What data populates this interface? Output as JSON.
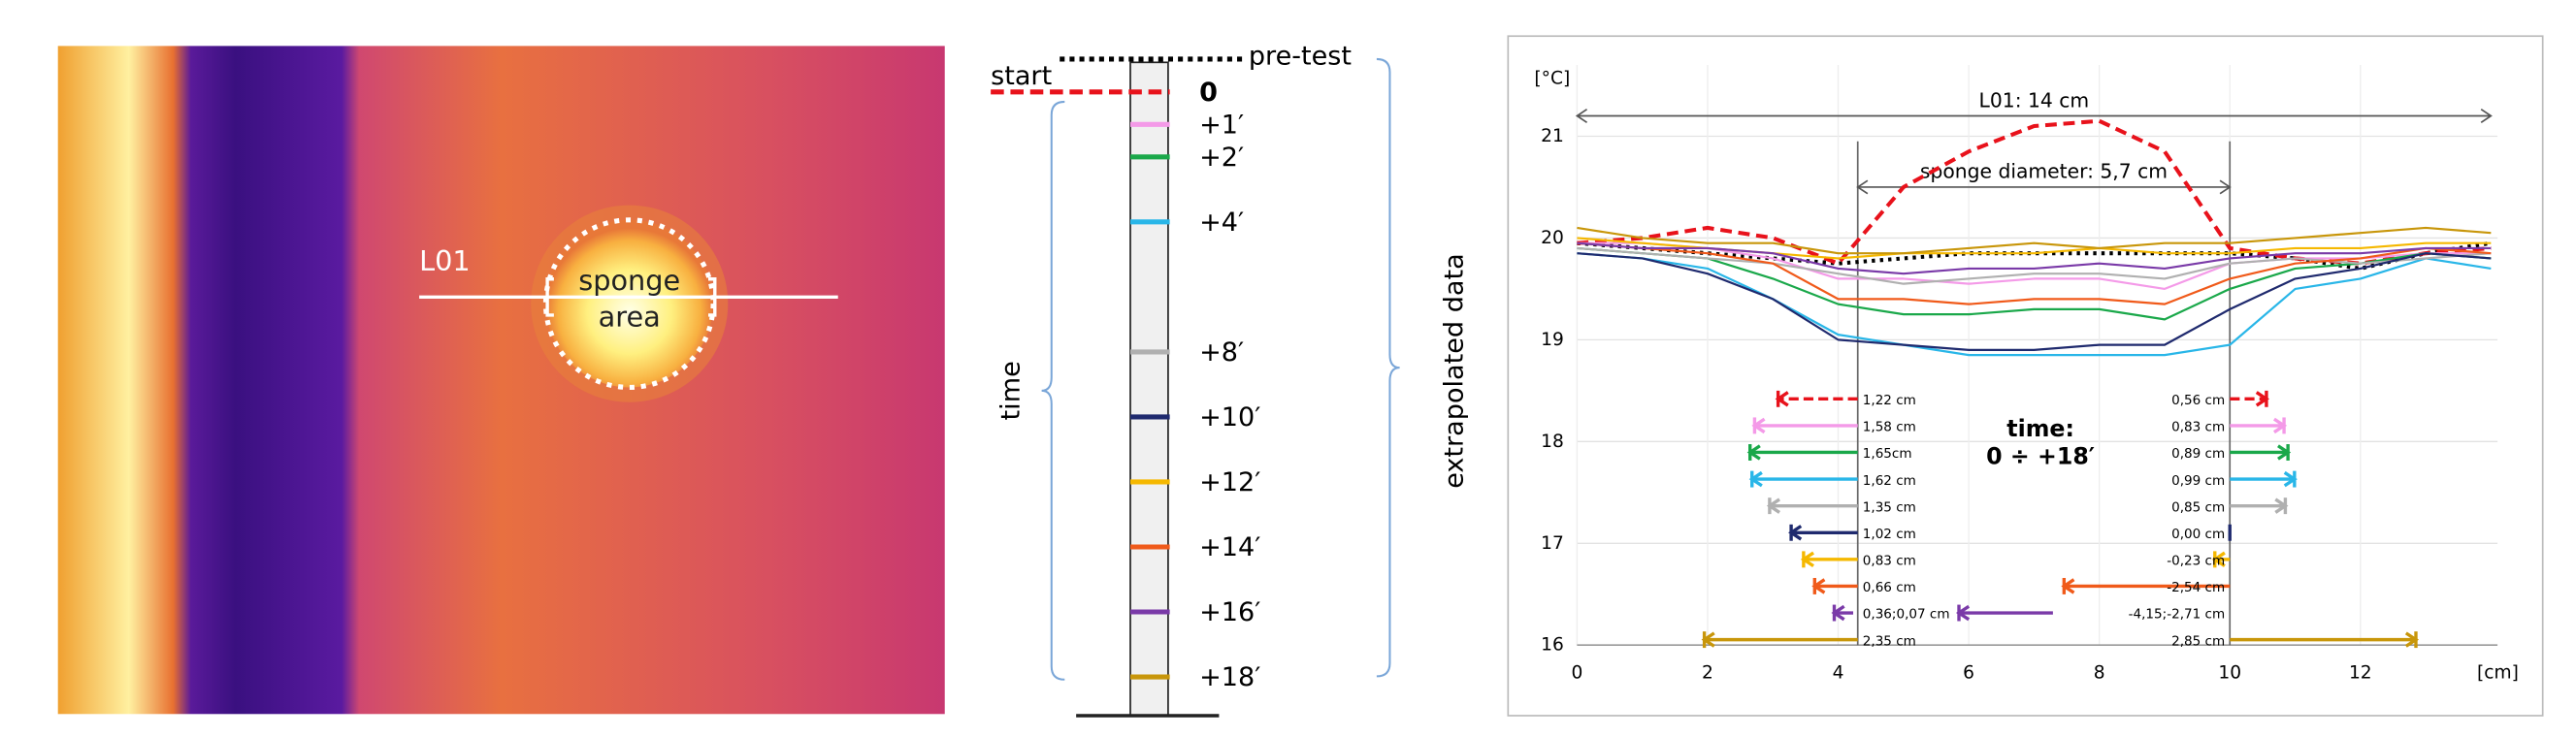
{
  "thermal_image": {
    "line_label": "L01",
    "area_label": [
      "sponge",
      "area"
    ]
  },
  "timeline": {
    "start_label": "start",
    "axis_label": "time",
    "brace_label": "extrapolated data",
    "minutes": [
      null,
      0,
      1,
      2,
      4,
      8,
      10,
      12,
      14,
      16,
      18
    ]
  },
  "chart_data": {
    "type": "line",
    "y_unit": "[°C]",
    "x_unit": "[cm]",
    "xlim": [
      0,
      14.1
    ],
    "ylim": [
      16,
      21.7
    ],
    "xticks": [
      0,
      2,
      4,
      6,
      8,
      10,
      12
    ],
    "yticks": [
      16,
      17,
      18,
      19,
      20,
      21
    ],
    "grid": true,
    "x": [
      0,
      1,
      2,
      3,
      4,
      5,
      6,
      7,
      8,
      9,
      10,
      11,
      12,
      13,
      14
    ],
    "length_annotation": {
      "label": "L01: 14 cm",
      "from": 0,
      "to": 14,
      "y": 21.2
    },
    "sponge_edges": [
      4.3,
      10
    ],
    "sponge_annotation": {
      "label": "sponge diameter: 5,7 cm",
      "y": 20.5
    },
    "time_annotation": [
      "time:",
      "0 ÷ +18′"
    ],
    "series": [
      {
        "name": "pre-test",
        "color": "#000000",
        "dash": "dotted",
        "values": [
          19.95,
          19.9,
          19.85,
          19.8,
          19.75,
          19.8,
          19.85,
          19.85,
          19.85,
          19.85,
          19.85,
          19.8,
          19.7,
          19.85,
          19.95
        ]
      },
      {
        "name": "0",
        "color": "#e8121b",
        "dash": "dashed",
        "values": [
          19.95,
          20.0,
          20.1,
          20.0,
          19.75,
          20.5,
          20.85,
          21.1,
          21.15,
          20.85,
          19.9,
          19.8,
          19.75,
          19.85,
          19.9
        ],
        "left": 1.22,
        "left_label": "1,22 cm",
        "right": 0.56,
        "right_label": "0,56 cm"
      },
      {
        "name": "+1′",
        "color": "#f49ae8",
        "values": [
          19.95,
          19.95,
          19.9,
          19.8,
          19.6,
          19.6,
          19.55,
          19.6,
          19.6,
          19.5,
          19.75,
          19.8,
          19.8,
          19.85,
          19.85
        ],
        "left": 1.58,
        "left_label": "1,58 cm",
        "right": 0.83,
        "right_label": "0,83 cm"
      },
      {
        "name": "+2′",
        "color": "#1aa84a",
        "values": [
          19.9,
          19.85,
          19.8,
          19.6,
          19.35,
          19.25,
          19.25,
          19.3,
          19.3,
          19.2,
          19.5,
          19.7,
          19.75,
          19.85,
          19.8
        ],
        "left": 1.65,
        "left_label": "1,65cm",
        "right": 0.89,
        "right_label": "0,89 cm"
      },
      {
        "name": "+4′",
        "color": "#29b6e8",
        "values": [
          19.85,
          19.8,
          19.7,
          19.4,
          19.05,
          18.95,
          18.85,
          18.85,
          18.85,
          18.85,
          18.95,
          19.5,
          19.6,
          19.8,
          19.7
        ],
        "left": 1.62,
        "left_label": "1,62 cm",
        "right": 0.99,
        "right_label": "0,99 cm"
      },
      {
        "name": "+8′",
        "color": "#b0b0b0",
        "values": [
          19.9,
          19.85,
          19.8,
          19.75,
          19.65,
          19.55,
          19.6,
          19.65,
          19.65,
          19.6,
          19.75,
          19.8,
          19.75,
          19.8,
          19.85
        ],
        "left": 1.35,
        "left_label": "1,35 cm",
        "right": 0.85,
        "right_label": "0,85 cm"
      },
      {
        "name": "+10′",
        "color": "#1f2a6e",
        "values": [
          19.85,
          19.8,
          19.65,
          19.4,
          19.0,
          18.95,
          18.9,
          18.9,
          18.95,
          18.95,
          19.3,
          19.6,
          19.7,
          19.85,
          19.8
        ],
        "left": 1.02,
        "left_label": "1,02 cm",
        "right": 0,
        "right_label": "0,00 cm"
      },
      {
        "name": "+12′",
        "color": "#f5b800",
        "values": [
          20.0,
          19.95,
          19.9,
          19.85,
          19.8,
          19.85,
          19.85,
          19.85,
          19.9,
          19.85,
          19.85,
          19.9,
          19.9,
          19.95,
          19.95
        ],
        "left": 0.83,
        "left_label": "0,83 cm",
        "right": -0.23,
        "right_label": "-0,23 cm"
      },
      {
        "name": "+14′",
        "color": "#f05a1a",
        "values": [
          19.95,
          19.9,
          19.85,
          19.75,
          19.4,
          19.4,
          19.35,
          19.4,
          19.4,
          19.35,
          19.6,
          19.75,
          19.8,
          19.9,
          19.85
        ],
        "left": 0.66,
        "left_label": "0,66 cm",
        "right": -2.54,
        "right_label": "-2,54 cm"
      },
      {
        "name": "+16′",
        "color": "#7a3aa8",
        "values": [
          19.95,
          19.9,
          19.9,
          19.85,
          19.7,
          19.65,
          19.7,
          19.7,
          19.75,
          19.7,
          19.8,
          19.85,
          19.85,
          19.9,
          19.9
        ],
        "left": [
          0.36,
          0.07
        ],
        "left_label": "0,36;0,07 cm",
        "right": [
          -4.15,
          -2.71
        ],
        "right_label": "-4,15;-2,71 cm"
      },
      {
        "name": "+18′",
        "color": "#c8960a",
        "values": [
          20.1,
          20.0,
          19.95,
          19.95,
          19.85,
          19.85,
          19.9,
          19.95,
          19.9,
          19.95,
          19.95,
          20.0,
          20.05,
          20.1,
          20.05
        ],
        "left": 2.35,
        "left_label": "2,35 cm",
        "right": 2.85,
        "right_label": "2,85 cm"
      }
    ]
  }
}
